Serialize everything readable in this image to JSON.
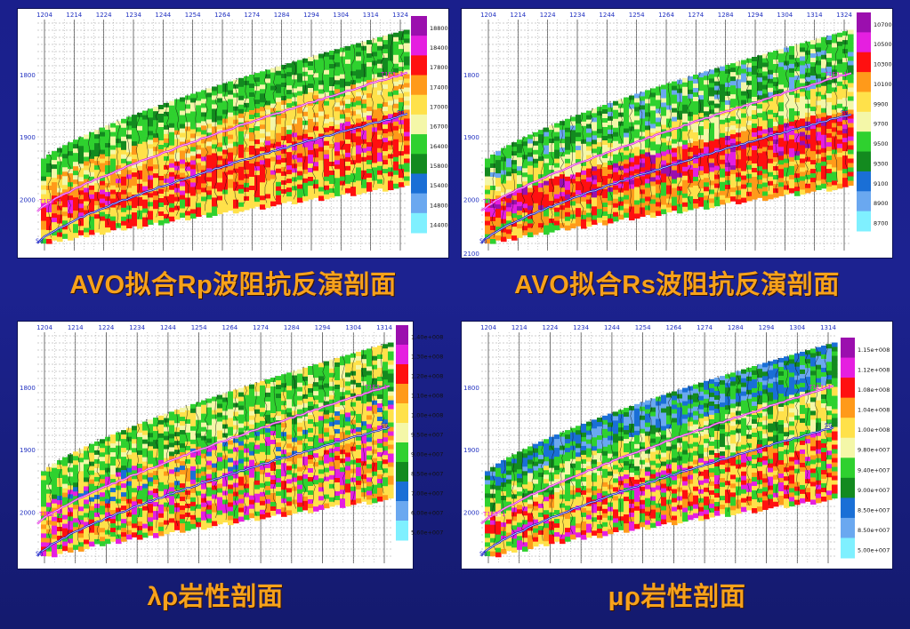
{
  "panels": [
    {
      "id": "rp",
      "caption": "AVO拟合Rp波阻抗反演剖面",
      "x_ticks": [
        "1204",
        "1214",
        "1224",
        "1234",
        "1244",
        "1254",
        "1264",
        "1274",
        "1284",
        "1294",
        "1304",
        "1314",
        "1324"
      ],
      "y_ticks": [
        "1800",
        "1900",
        "2000"
      ],
      "horizons": [
        "T1E3-1",
        "SG"
      ],
      "legend": [
        "18800",
        "18400",
        "17800",
        "17400",
        "17000",
        "16700",
        "16400",
        "15800",
        "15400",
        "14800",
        "14400"
      ]
    },
    {
      "id": "rs",
      "caption": "AVO拟合Rs波阻抗反演剖面",
      "x_ticks": [
        "1204",
        "1214",
        "1224",
        "1234",
        "1244",
        "1254",
        "1264",
        "1274",
        "1284",
        "1294",
        "1304",
        "1314",
        "1324"
      ],
      "y_ticks": [
        "1800",
        "1900",
        "2000",
        "2100"
      ],
      "horizons": [
        "T1E3-1",
        "SG"
      ],
      "legend": [
        "10700",
        "10500",
        "10300",
        "10100",
        "9900",
        "9700",
        "9500",
        "9300",
        "9100",
        "8900",
        "8700"
      ]
    },
    {
      "id": "lambda_rho",
      "caption": "λρ岩性剖面",
      "x_ticks": [
        "1204",
        "1214",
        "1224",
        "1234",
        "1244",
        "1254",
        "1264",
        "1274",
        "1284",
        "1294",
        "1304",
        "1314"
      ],
      "y_ticks": [
        "1800",
        "1900",
        "2000"
      ],
      "horizons": [
        "T1E3-1",
        "SG"
      ],
      "legend": [
        "1.40e+008",
        "1.30e+008",
        "1.20e+008",
        "1.10e+008",
        "1.00e+008",
        "9.50e+007",
        "9.00e+007",
        "8.50e+007",
        "7.00e+007",
        "6.00e+007",
        "5.60e+007"
      ]
    },
    {
      "id": "mu_rho",
      "caption": "μρ岩性剖面",
      "x_ticks": [
        "1204",
        "1214",
        "1224",
        "1234",
        "1244",
        "1254",
        "1264",
        "1274",
        "1284",
        "1294",
        "1304",
        "1314"
      ],
      "y_ticks": [
        "1800",
        "1900",
        "2000"
      ],
      "horizons": [
        "T1E3-1",
        "SG"
      ],
      "legend": [
        "1.15e+008",
        "1.12e+008",
        "1.08e+008",
        "1.04e+008",
        "1.00e+008",
        "9.80e+007",
        "9.40e+007",
        "9.00e+007",
        "8.50e+007",
        "8.50e+007",
        "5.00e+007"
      ]
    }
  ],
  "colors": {
    "scale": [
      "#9b0fae",
      "#e51fe0",
      "#ff1010",
      "#ff9a1a",
      "#ffe14a",
      "#f4f7a8",
      "#2fd12f",
      "#138a1f",
      "#1a6fd6",
      "#6aa8f0",
      "#7ff0ff"
    ],
    "horizon_top": "#e020e0",
    "horizon_bottom": "#1a22c8",
    "caption": "#f7a21b"
  }
}
